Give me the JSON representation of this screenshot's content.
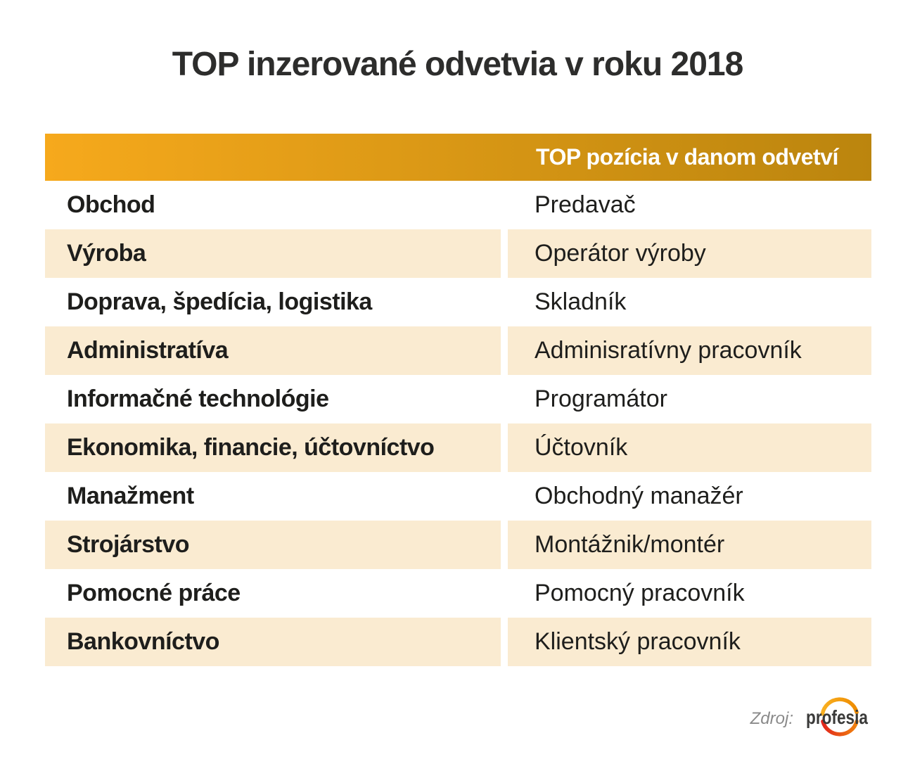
{
  "title": "TOP inzerované odvetvia v roku 2018",
  "table": {
    "header_label": "TOP pozícia v danom odvetví",
    "rows": [
      {
        "industry": "Obchod",
        "position": "Predavač"
      },
      {
        "industry": "Výroba",
        "position": "Operátor výroby"
      },
      {
        "industry": "Doprava, špedícia, logistika",
        "position": "Skladník"
      },
      {
        "industry": "Administratíva",
        "position": "Adminisratívny pracovník"
      },
      {
        "industry": "Informačné technológie",
        "position": "Programátor"
      },
      {
        "industry": "Ekonomika, financie, účtovníctvo",
        "position": "Účtovník"
      },
      {
        "industry": "Manažment",
        "position": "Obchodný manažér"
      },
      {
        "industry": "Strojárstvo",
        "position": "Montážnik/montér"
      },
      {
        "industry": "Pomocné práce",
        "position": "Pomocný pracovník"
      },
      {
        "industry": "Bankovníctvo",
        "position": "Klientský pracovník"
      }
    ]
  },
  "footer": {
    "source_label": "Zdroj:",
    "brand": "profesia"
  },
  "colors": {
    "title-text": "#2d2d2c",
    "body-text": "#1e1e1c",
    "band-left": "#f6a91c",
    "band-right": "#bb850e",
    "band-text": "#ffffff",
    "stripe": "#faebd1",
    "source-text": "#8a8a8a",
    "brand-text": "#3a3a39",
    "arc-top-start": "#f9b021",
    "arc-top-end": "#ee8b00",
    "arc-bottom-start": "#e2261c",
    "arc-bottom-end": "#f0820d"
  },
  "chart_data": {
    "type": "table",
    "title": "TOP inzerované odvetvia v roku 2018",
    "columns": [
      "",
      "TOP pozícia v danom odvetví"
    ],
    "rows": [
      [
        "Obchod",
        "Predavač"
      ],
      [
        "Výroba",
        "Operátor výroby"
      ],
      [
        "Doprava, špedícia, logistika",
        "Skladník"
      ],
      [
        "Administratíva",
        "Adminisratívny pracovník"
      ],
      [
        "Informačné technológie",
        "Programátor"
      ],
      [
        "Ekonomika, financie, účtovníctvo",
        "Účtovník"
      ],
      [
        "Manažment",
        "Obchodný manažér"
      ],
      [
        "Strojárstvo",
        "Montážnik/montér"
      ],
      [
        "Pomocné práce",
        "Pomocný pracovník"
      ],
      [
        "Bankovníctvo",
        "Klientský pracovník"
      ]
    ],
    "source": "profesia"
  }
}
